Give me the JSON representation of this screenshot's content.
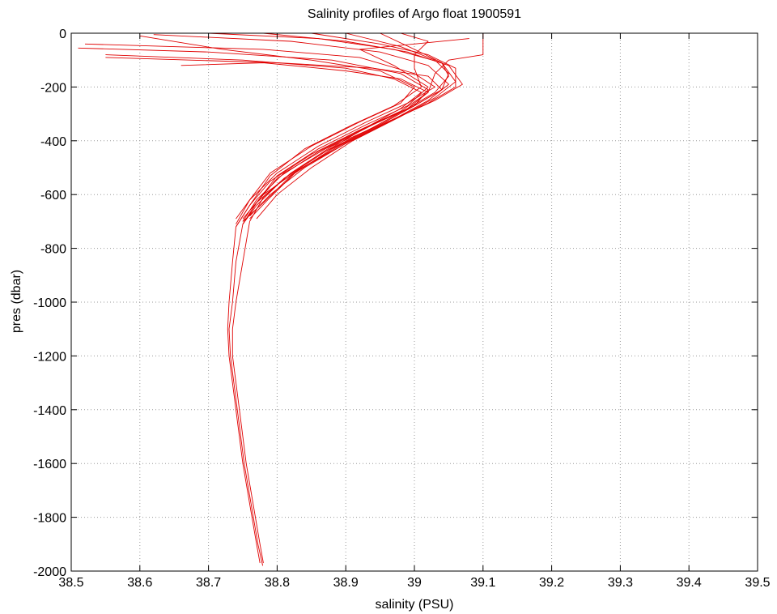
{
  "chart_data": {
    "type": "line",
    "title": "Salinity profiles of Argo float 1900591",
    "xlabel": "salinity (PSU)",
    "ylabel": "pres (dbar)",
    "xlim": [
      38.5,
      39.5
    ],
    "ylim": [
      -2000,
      0
    ],
    "xticks": [
      "38.5",
      "38.6",
      "38.7",
      "38.8",
      "38.9",
      "39",
      "39.1",
      "39.2",
      "39.3",
      "39.4",
      "39.5"
    ],
    "yticks": [
      "0",
      "-200",
      "-400",
      "-600",
      "-800",
      "-1000",
      "-1200",
      "-1400",
      "-1600",
      "-1800",
      "-2000"
    ],
    "grid": true,
    "grid_style": "dotted",
    "line_color": "#e00000",
    "series": [
      {
        "x": [
          38.52,
          38.78,
          38.92,
          39.0,
          39.03,
          38.99,
          38.93,
          38.86,
          38.8,
          38.76,
          38.74
        ],
        "y": [
          -40,
          -60,
          -90,
          -150,
          -200,
          -260,
          -330,
          -420,
          -520,
          -620,
          -710
        ]
      },
      {
        "x": [
          38.51,
          38.7,
          38.88,
          38.98,
          39.02,
          39.0,
          38.95,
          38.88,
          38.82,
          38.78,
          38.75
        ],
        "y": [
          -55,
          -70,
          -100,
          -150,
          -210,
          -270,
          -340,
          -430,
          -530,
          -630,
          -700
        ]
      },
      {
        "x": [
          38.55,
          38.75,
          38.9,
          38.97,
          39.01,
          38.98,
          38.93,
          38.87,
          38.81,
          38.77,
          38.75
        ],
        "y": [
          -80,
          -100,
          -130,
          -170,
          -220,
          -280,
          -350,
          -440,
          -540,
          -640,
          -710
        ]
      },
      {
        "x": [
          38.6,
          38.72,
          38.85,
          38.95,
          39.0,
          38.98,
          38.92,
          38.85,
          38.79,
          38.76,
          38.74
        ],
        "y": [
          -10,
          -60,
          -100,
          -140,
          -200,
          -260,
          -330,
          -420,
          -520,
          -620,
          -690
        ]
      },
      {
        "x": [
          38.55,
          38.8,
          38.94,
          39.02,
          39.04,
          39.0,
          38.95,
          38.88,
          38.82,
          38.78,
          38.76
        ],
        "y": [
          -90,
          -110,
          -130,
          -160,
          -210,
          -270,
          -340,
          -420,
          -520,
          -610,
          -700
        ]
      },
      {
        "x": [
          38.62,
          38.82,
          38.95,
          39.02,
          39.05,
          39.02,
          38.97,
          38.9,
          38.83,
          38.79,
          38.76
        ],
        "y": [
          -5,
          -30,
          -70,
          -120,
          -190,
          -250,
          -320,
          -410,
          -510,
          -610,
          -690
        ]
      },
      {
        "x": [
          38.7,
          38.86,
          38.97,
          39.04,
          39.06,
          39.03,
          38.98,
          38.91,
          38.85,
          38.8,
          38.77
        ],
        "y": [
          0,
          -20,
          -60,
          -110,
          -180,
          -240,
          -310,
          -400,
          -500,
          -600,
          -690
        ]
      },
      {
        "x": [
          38.78,
          38.9,
          38.99,
          39.05,
          39.07,
          39.03,
          38.97,
          38.9,
          38.84,
          38.79,
          38.76
        ],
        "y": [
          0,
          -30,
          -70,
          -120,
          -190,
          -250,
          -320,
          -410,
          -500,
          -600,
          -680
        ]
      },
      {
        "x": [
          38.85,
          38.95,
          39.02,
          39.06,
          39.06,
          39.02,
          38.96,
          38.89,
          38.83,
          38.78,
          38.75
        ],
        "y": [
          0,
          -40,
          -80,
          -130,
          -200,
          -260,
          -330,
          -420,
          -510,
          -600,
          -690
        ]
      },
      {
        "x": [
          38.9,
          38.98,
          39.03,
          39.05,
          39.04,
          39.0,
          38.94,
          38.87,
          38.81,
          38.77,
          38.75
        ],
        "y": [
          0,
          -50,
          -100,
          -150,
          -210,
          -270,
          -340,
          -430,
          -520,
          -620,
          -700
        ]
      },
      {
        "x": [
          38.95,
          39.0,
          39.04,
          39.05,
          39.03,
          38.99,
          38.93,
          38.86,
          38.8,
          38.77,
          38.75
        ],
        "y": [
          0,
          -60,
          -110,
          -160,
          -220,
          -280,
          -350,
          -440,
          -540,
          -630,
          -710
        ]
      },
      {
        "x": [
          39.1,
          39.1,
          39.05,
          39.03,
          39.02,
          38.98,
          38.92,
          38.85,
          38.79,
          38.76,
          38.74
        ],
        "y": [
          0,
          -80,
          -100,
          -150,
          -220,
          -290,
          -360,
          -450,
          -550,
          -640,
          -720
        ]
      },
      {
        "x": [
          38.66,
          38.78,
          38.9,
          38.98,
          39.02,
          38.99,
          38.94,
          38.87,
          38.81,
          38.77,
          38.75
        ],
        "y": [
          -120,
          -110,
          -140,
          -170,
          -220,
          -280,
          -350,
          -440,
          -540,
          -630,
          -710
        ]
      },
      {
        "x": [
          39.08,
          39.0,
          38.92,
          38.97,
          39.02,
          38.99,
          38.93,
          38.86,
          38.8,
          38.77,
          38.75
        ],
        "y": [
          -20,
          -40,
          -60,
          -120,
          -200,
          -270,
          -340,
          -430,
          -530,
          -630,
          -710
        ]
      },
      {
        "x": [
          38.98,
          39.02,
          39.0,
          39.0,
          39.01,
          38.97,
          38.91,
          38.84,
          38.79,
          38.76,
          38.74
        ],
        "y": [
          0,
          -30,
          -80,
          -130,
          -200,
          -270,
          -340,
          -430,
          -530,
          -640,
          -720
        ]
      },
      {
        "x": [
          38.74,
          38.735,
          38.73,
          38.728,
          38.73,
          38.74,
          38.75,
          38.76,
          38.77,
          38.775
        ],
        "y": [
          -720,
          -850,
          -1000,
          -1100,
          -1200,
          -1400,
          -1600,
          -1750,
          -1900,
          -1970
        ]
      },
      {
        "x": [
          38.76,
          38.75,
          38.74,
          38.735,
          38.735,
          38.745,
          38.755,
          38.765,
          38.775,
          38.78
        ],
        "y": [
          -700,
          -850,
          -1000,
          -1100,
          -1200,
          -1400,
          -1600,
          -1750,
          -1900,
          -1970
        ]
      },
      {
        "x": [
          38.75,
          38.74,
          38.735,
          38.73,
          38.732,
          38.742,
          38.752,
          38.762,
          38.772,
          38.779
        ],
        "y": [
          -710,
          -850,
          -1000,
          -1100,
          -1200,
          -1400,
          -1600,
          -1750,
          -1900,
          -1980
        ]
      }
    ]
  }
}
